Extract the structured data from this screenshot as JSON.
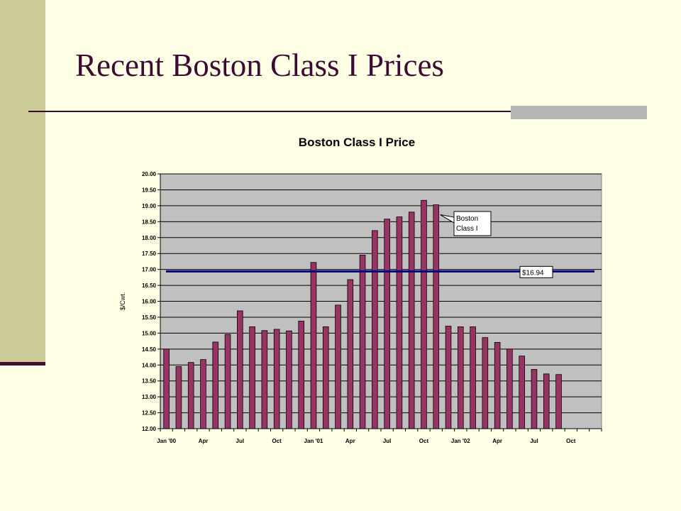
{
  "slide": {
    "title": "Recent Boston Class I Prices"
  },
  "colors": {
    "background": "#ffffe6",
    "sidebar": "#cccc9a",
    "accent_dark": "#3d0a33",
    "plot_area": "#c0c0c0",
    "bar": "#993366",
    "average_line": "#000080"
  },
  "chart_data": {
    "type": "bar",
    "title": "Boston Class I Price",
    "ylabel": "$/Cwt.",
    "xlabel": "",
    "ylim": [
      12.0,
      20.0
    ],
    "ytick_step": 0.5,
    "ytick_labels": [
      "12.00",
      "12.50",
      "13.00",
      "13.50",
      "14.00",
      "14.50",
      "15.00",
      "15.50",
      "16.00",
      "16.50",
      "17.00",
      "17.50",
      "18.00",
      "18.50",
      "19.00",
      "19.50",
      "20.00"
    ],
    "grid": true,
    "months": 36,
    "x_tick_labels": [
      {
        "index": 0,
        "label": "Jan '00"
      },
      {
        "index": 3,
        "label": "Apr"
      },
      {
        "index": 6,
        "label": "Jul"
      },
      {
        "index": 9,
        "label": "Oct"
      },
      {
        "index": 12,
        "label": "Jan '01"
      },
      {
        "index": 15,
        "label": "Apr"
      },
      {
        "index": 18,
        "label": "Jul"
      },
      {
        "index": 21,
        "label": "Oct"
      },
      {
        "index": 24,
        "label": "Jan '02"
      },
      {
        "index": 27,
        "label": "Apr"
      },
      {
        "index": 30,
        "label": "Jul"
      },
      {
        "index": 33,
        "label": "Oct"
      }
    ],
    "series": [
      {
        "name": "Boston Class I",
        "values": [
          14.5,
          13.95,
          14.08,
          14.17,
          14.72,
          14.96,
          15.7,
          15.2,
          15.08,
          15.12,
          15.07,
          15.38,
          17.22,
          15.2,
          15.88,
          16.68,
          17.45,
          18.22,
          18.58,
          18.65,
          18.8,
          19.17,
          19.03,
          15.22,
          15.2,
          15.2,
          14.86,
          14.71,
          14.5,
          14.28,
          13.86,
          13.72,
          13.7
        ]
      }
    ],
    "average": {
      "value": 16.94,
      "label": "$16.94"
    },
    "annotation": {
      "text_lines": [
        "Boston",
        "Class I"
      ],
      "points_to_index": 22
    }
  }
}
